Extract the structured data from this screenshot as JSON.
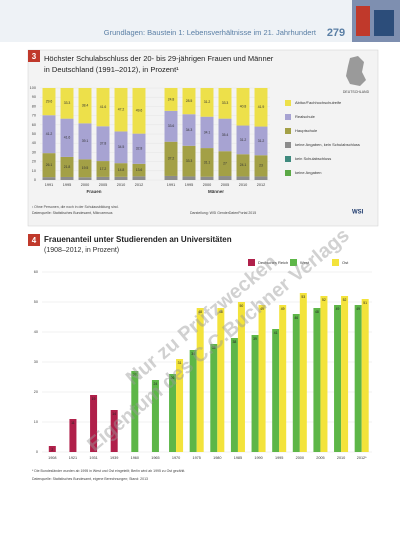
{
  "header": {
    "title": "Grundlagen: Baustein 1: Lebensverhältnisse im 21. Jahrhundert",
    "page": "279"
  },
  "watermark": [
    "Nur zu Prüfzwecken",
    "Eigentum des C.C.Buchner Verlags"
  ],
  "chart_data": [
    {
      "type": "stacked_bar",
      "number": "3",
      "title": "Höchster Schulabschluss der 20- bis 29-jährigen Frauen und Männer",
      "subtitle": "in Deutschland (1991–2012), in Prozent¹",
      "map_label": "DEUTSCHLAND",
      "groups": [
        "Frauen",
        "Männer"
      ],
      "categories": [
        "1991",
        "1995",
        "2000",
        "2005",
        "2010",
        "2012",
        "1991",
        "1995",
        "2000",
        "2005",
        "2010",
        "2012"
      ],
      "series": [
        {
          "name": "keine Angaben, kein Schulabschluss",
          "color": "#8c8c8c",
          "values": [
            3.1,
            3.3,
            3.0,
            3.4,
            3.5,
            4.0,
            4.4,
            3.9,
            3.6,
            4.3,
            3.9,
            3.9
          ]
        },
        {
          "name": "Hauptschule",
          "color": "#a3a046",
          "values": [
            26.1,
            21.8,
            19.5,
            17.2,
            14.8,
            13.6,
            37.2,
            33.3,
            31.1,
            27.0,
            24.1,
            23.0
          ]
        },
        {
          "name": "Realschule",
          "color": "#a7a3d2",
          "values": [
            41.2,
            41.6,
            39.1,
            37.8,
            34.5,
            32.8,
            33.6,
            34.3,
            34.1,
            35.4,
            31.2,
            31.2
          ]
        },
        {
          "name": "Abitur/Fachhochschulreife",
          "color": "#ede04a",
          "values": [
            29.6,
            33.3,
            38.4,
            41.6,
            47.2,
            49.6,
            24.8,
            28.5,
            31.2,
            33.3,
            40.8,
            41.9
          ]
        },
        {
          "name": "kein Schulabschluss",
          "color": "#3f8a7e",
          "values": [
            null,
            null,
            null,
            null,
            null,
            null,
            null,
            null,
            null,
            null,
            null,
            null
          ]
        },
        {
          "name": "keine Angaben",
          "color": "#5aa845",
          "values": [
            null,
            null,
            null,
            null,
            null,
            null,
            null,
            null,
            null,
            null,
            null,
            null
          ]
        }
      ],
      "legend_order": [
        3,
        2,
        1,
        0,
        4,
        5
      ],
      "ylim": [
        0,
        100
      ],
      "yticks": [
        0,
        10,
        20,
        30,
        40,
        50,
        60,
        70,
        80,
        90,
        100
      ],
      "footnote": "¹ Ohne Personen, die noch in der Schulausbildung sind.",
      "source": "Datenquelle: Statistisches Bundesamt, Mikrozensus",
      "credit": "Darstellung: WSI GenderDatenPortal 2015",
      "logo": "WSI"
    },
    {
      "type": "bar",
      "number": "4",
      "title": "Frauenanteil unter Studierenden an Universitäten",
      "subtitle": "(1908–2012, in Prozent)",
      "categories": [
        "1908",
        "1921",
        "1931",
        "1939",
        "1960",
        "1965",
        "1970",
        "1975",
        "1980",
        "1985",
        "1990",
        "1995",
        "2000",
        "2005",
        "2010",
        "2012*"
      ],
      "series": [
        {
          "name": "Deutsches Reich",
          "color": "#b0204a",
          "values": [
            2,
            11,
            19,
            14,
            null,
            null,
            null,
            null,
            null,
            null,
            null,
            null,
            null,
            null,
            null,
            null
          ]
        },
        {
          "name": "West",
          "color": "#5db648",
          "values": [
            null,
            null,
            null,
            null,
            27,
            24,
            26,
            34,
            36,
            38,
            39,
            41,
            46,
            48,
            49,
            49
          ]
        },
        {
          "name": "Ost",
          "color": "#f3e33b",
          "values": [
            null,
            null,
            null,
            null,
            null,
            null,
            31,
            48,
            48,
            50,
            49,
            49,
            53,
            52,
            52,
            51
          ]
        }
      ],
      "ylim": [
        0,
        60
      ],
      "yticks": [
        0,
        10,
        20,
        30,
        40,
        50,
        60
      ],
      "footnote": "* Die Bundesländer wurden ab 1995 in West und Ost eingeteilt; Berlin wird ab 1995 zu Ost gezählt.",
      "source": "Datenquelle: Statistisches Bundesamt, eigene Berechnungen; Stand: 2013"
    }
  ]
}
